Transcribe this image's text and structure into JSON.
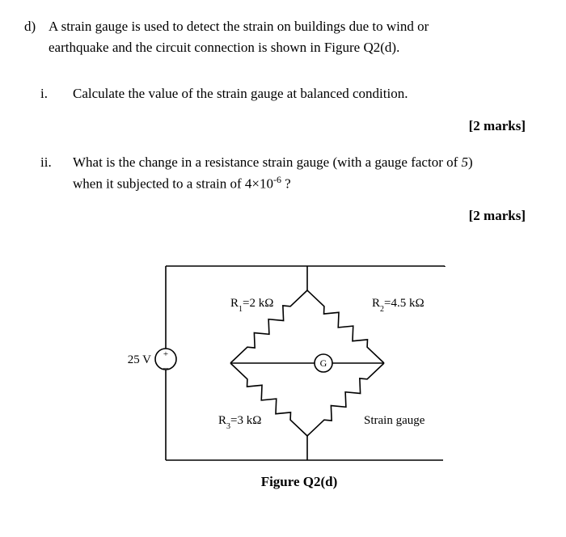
{
  "question": {
    "label": "d)",
    "intro_line1": "A strain gauge is used to detect the strain on buildings due to wind or",
    "intro_line2": "earthquake and the circuit connection is shown in Figure Q2(d)."
  },
  "part_i": {
    "label": "i.",
    "text": "Calculate the value of the strain gauge at balanced condition.",
    "marks": "[2 marks]"
  },
  "part_ii": {
    "label": "ii.",
    "line1_a": "What is the change in a resistance strain gauge (with a gauge factor of ",
    "gauge_factor": "5",
    "line1_b": ")",
    "line2_a": "when it subjected to a strain of ",
    "strain_coef": "4×10",
    "strain_exp": "-6",
    "line2_b": " ?",
    "marks": "[2 marks]"
  },
  "circuit": {
    "voltage": "25 V",
    "R1_name": "R",
    "R1_sub": "1",
    "R1_val": "=2 kΩ",
    "R2_name": "R",
    "R2_sub": "2",
    "R2_val": "=4.5 kΩ",
    "R3_name": "R",
    "R3_sub": "3",
    "R3_val": "=3 kΩ",
    "R4_label": "Strain gauge",
    "galv": "G",
    "caption": "Figure Q2(d)",
    "colors": {
      "stroke": "#000000",
      "bg": "#ffffff"
    },
    "stroke_width": 1.6
  }
}
